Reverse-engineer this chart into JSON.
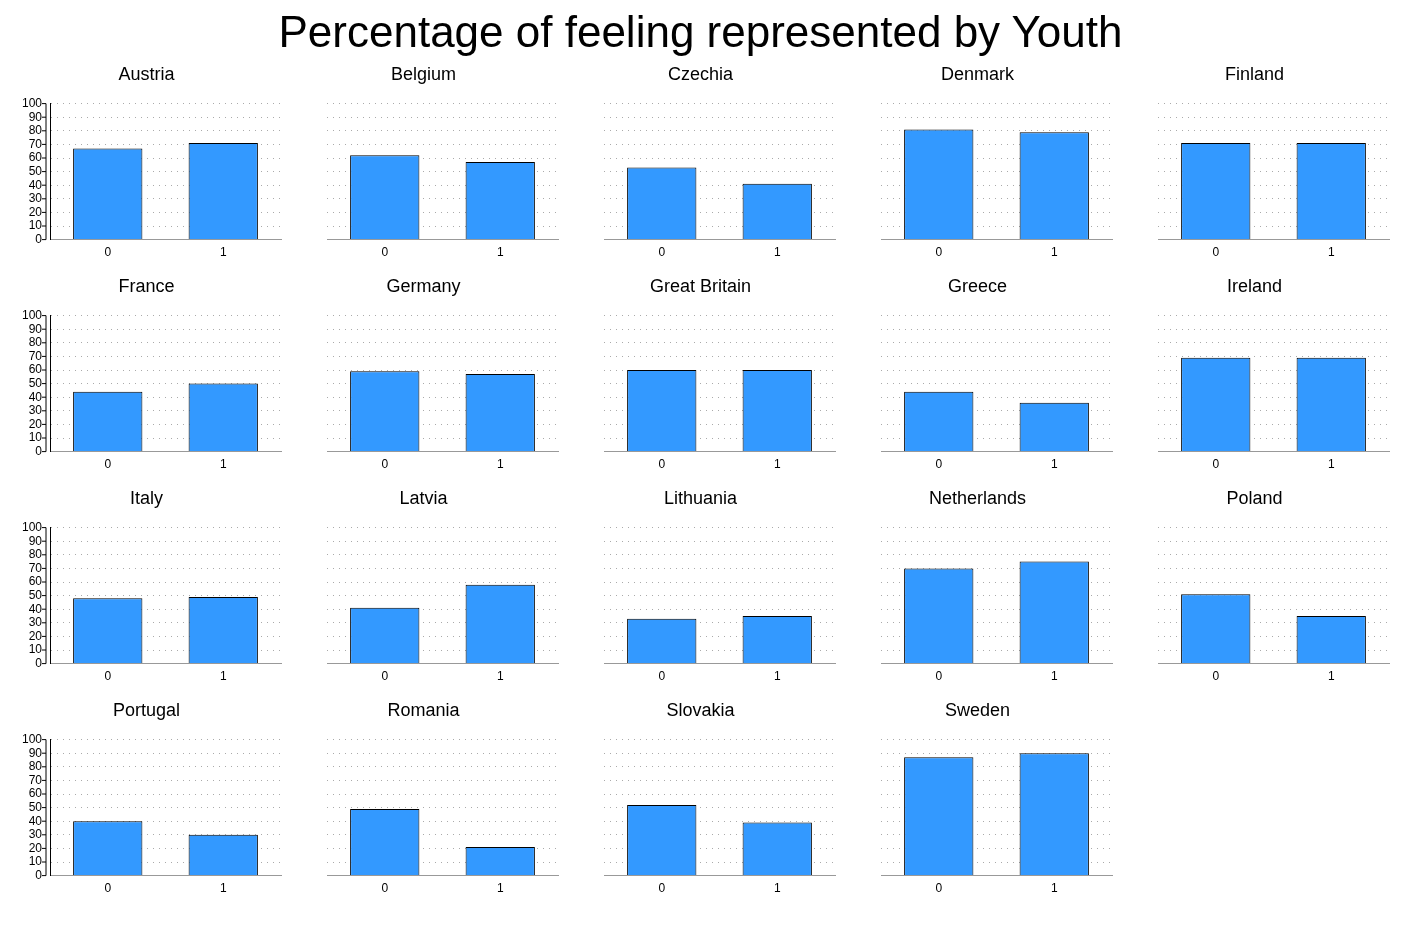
{
  "chart_data": [
    {
      "type": "bar",
      "title": "Austria",
      "annotations": [
        "Percentage of feeling represented by Youth"
      ],
      "categories": [
        "0",
        "1"
      ],
      "values": [
        67,
        71
      ],
      "color": "#3399ff",
      "ylim": [
        0,
        100
      ],
      "yticks": [
        0,
        10,
        20,
        30,
        40,
        50,
        60,
        70,
        80,
        90,
        100
      ],
      "grid": "y"
    },
    {
      "type": "bar",
      "title": "Belgium",
      "categories": [
        "0",
        "1"
      ],
      "values": [
        62,
        57
      ],
      "color": "#3399ff",
      "ylim": [
        0,
        100
      ],
      "yticks": [
        0,
        10,
        20,
        30,
        40,
        50,
        60,
        70,
        80,
        90,
        100
      ],
      "grid": "y",
      "tick_labels": "x"
    },
    {
      "type": "bar",
      "title": "Czechia",
      "categories": [
        "0",
        "1"
      ],
      "values": [
        53,
        41
      ],
      "color": "#3399ff",
      "ylim": [
        0,
        100
      ],
      "yticks": [
        0,
        10,
        20,
        30,
        40,
        50,
        60,
        70,
        80,
        90,
        100
      ],
      "grid": "y",
      "tick_labels": "x"
    },
    {
      "type": "bar",
      "title": "Denmark",
      "categories": [
        "0",
        "1"
      ],
      "values": [
        81,
        79
      ],
      "color": "#3399ff",
      "ylim": [
        0,
        100
      ],
      "yticks": [
        0,
        10,
        20,
        30,
        40,
        50,
        60,
        70,
        80,
        90,
        100
      ],
      "grid": "y",
      "tick_labels": "x"
    },
    {
      "type": "bar",
      "title": "Finland",
      "categories": [
        "0",
        "1"
      ],
      "values": [
        71,
        71
      ],
      "color": "#3399ff",
      "ylim": [
        0,
        100
      ],
      "yticks": [
        0,
        10,
        20,
        30,
        40,
        50,
        60,
        70,
        80,
        90,
        100
      ],
      "grid": "y",
      "tick_labels": "x"
    },
    {
      "type": "bar",
      "title": "France",
      "categories": [
        "0",
        "1"
      ],
      "values": [
        44,
        50
      ],
      "color": "#3399ff",
      "ylim": [
        0,
        100
      ],
      "yticks": [
        0,
        10,
        20,
        30,
        40,
        50,
        60,
        70,
        80,
        90,
        100
      ],
      "grid": "y"
    },
    {
      "type": "bar",
      "title": "Germany",
      "categories": [
        "0",
        "1"
      ],
      "values": [
        59,
        57
      ],
      "color": "#3399ff",
      "ylim": [
        0,
        100
      ],
      "yticks": [
        0,
        10,
        20,
        30,
        40,
        50,
        60,
        70,
        80,
        90,
        100
      ],
      "grid": "y",
      "tick_labels": "x"
    },
    {
      "type": "bar",
      "title": "Great Britain",
      "categories": [
        "0",
        "1"
      ],
      "values": [
        60,
        60
      ],
      "color": "#3399ff",
      "ylim": [
        0,
        100
      ],
      "yticks": [
        0,
        10,
        20,
        30,
        40,
        50,
        60,
        70,
        80,
        90,
        100
      ],
      "grid": "y",
      "tick_labels": "x"
    },
    {
      "type": "bar",
      "title": "Greece",
      "categories": [
        "0",
        "1"
      ],
      "values": [
        44,
        36
      ],
      "color": "#3399ff",
      "ylim": [
        0,
        100
      ],
      "yticks": [
        0,
        10,
        20,
        30,
        40,
        50,
        60,
        70,
        80,
        90,
        100
      ],
      "grid": "y",
      "tick_labels": "x"
    },
    {
      "type": "bar",
      "title": "Ireland",
      "categories": [
        "0",
        "1"
      ],
      "values": [
        69,
        69
      ],
      "color": "#3399ff",
      "ylim": [
        0,
        100
      ],
      "yticks": [
        0,
        10,
        20,
        30,
        40,
        50,
        60,
        70,
        80,
        90,
        100
      ],
      "grid": "y",
      "tick_labels": "x"
    },
    {
      "type": "bar",
      "title": "Italy",
      "categories": [
        "0",
        "1"
      ],
      "values": [
        48,
        49
      ],
      "color": "#3399ff",
      "ylim": [
        0,
        100
      ],
      "yticks": [
        0,
        10,
        20,
        30,
        40,
        50,
        60,
        70,
        80,
        90,
        100
      ],
      "grid": "y"
    },
    {
      "type": "bar",
      "title": "Latvia",
      "categories": [
        "0",
        "1"
      ],
      "values": [
        41,
        58
      ],
      "color": "#3399ff",
      "ylim": [
        0,
        100
      ],
      "yticks": [
        0,
        10,
        20,
        30,
        40,
        50,
        60,
        70,
        80,
        90,
        100
      ],
      "grid": "y",
      "tick_labels": "x"
    },
    {
      "type": "bar",
      "title": "Lithuania",
      "categories": [
        "0",
        "1"
      ],
      "values": [
        33,
        35
      ],
      "color": "#3399ff",
      "ylim": [
        0,
        100
      ],
      "yticks": [
        0,
        10,
        20,
        30,
        40,
        50,
        60,
        70,
        80,
        90,
        100
      ],
      "grid": "y",
      "tick_labels": "x"
    },
    {
      "type": "bar",
      "title": "Netherlands",
      "categories": [
        "0",
        "1"
      ],
      "values": [
        70,
        75
      ],
      "color": "#3399ff",
      "ylim": [
        0,
        100
      ],
      "yticks": [
        0,
        10,
        20,
        30,
        40,
        50,
        60,
        70,
        80,
        90,
        100
      ],
      "grid": "y",
      "tick_labels": "x"
    },
    {
      "type": "bar",
      "title": "Poland",
      "categories": [
        "0",
        "1"
      ],
      "values": [
        51,
        35
      ],
      "color": "#3399ff",
      "ylim": [
        0,
        100
      ],
      "yticks": [
        0,
        10,
        20,
        30,
        40,
        50,
        60,
        70,
        80,
        90,
        100
      ],
      "grid": "y",
      "tick_labels": "x"
    },
    {
      "type": "bar",
      "title": "Portugal",
      "categories": [
        "0",
        "1"
      ],
      "values": [
        40,
        30
      ],
      "color": "#3399ff",
      "ylim": [
        0,
        100
      ],
      "yticks": [
        0,
        10,
        20,
        30,
        40,
        50,
        60,
        70,
        80,
        90,
        100
      ],
      "grid": "y"
    },
    {
      "type": "bar",
      "title": "Romania",
      "categories": [
        "0",
        "1"
      ],
      "values": [
        49,
        21
      ],
      "color": "#3399ff",
      "ylim": [
        0,
        100
      ],
      "yticks": [
        0,
        10,
        20,
        30,
        40,
        50,
        60,
        70,
        80,
        90,
        100
      ],
      "grid": "y",
      "tick_labels": "x"
    },
    {
      "type": "bar",
      "title": "Slovakia",
      "categories": [
        "0",
        "1"
      ],
      "values": [
        52,
        39
      ],
      "color": "#3399ff",
      "ylim": [
        0,
        100
      ],
      "yticks": [
        0,
        10,
        20,
        30,
        40,
        50,
        60,
        70,
        80,
        90,
        100
      ],
      "grid": "y",
      "tick_labels": "x"
    },
    {
      "type": "bar",
      "title": "Sweden",
      "categories": [
        "0",
        "1"
      ],
      "values": [
        87,
        90
      ],
      "color": "#3399ff",
      "ylim": [
        0,
        100
      ],
      "yticks": [
        0,
        10,
        20,
        30,
        40,
        50,
        60,
        70,
        80,
        90,
        100
      ],
      "grid": "y",
      "tick_labels": "x"
    }
  ]
}
